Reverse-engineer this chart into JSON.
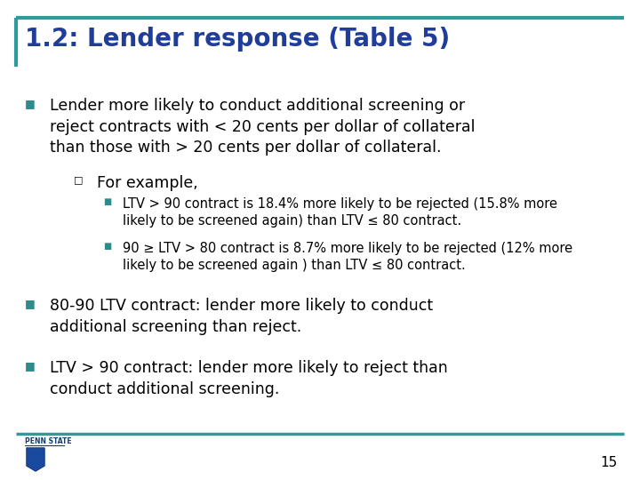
{
  "title": "1.2: Lender response (Table 5)",
  "title_color": "#1f3d99",
  "title_fontsize": 20,
  "bg_color": "#ffffff",
  "border_color_top": "#2e9b9b",
  "border_color_bottom": "#2e9b9b",
  "page_number": "15",
  "bullet_color": "#2e8b8b",
  "bullet1": "Lender more likely to conduct additional screening or\nreject contracts with < 20 cents per dollar of collateral\nthan those with > 20 cents per dollar of collateral.",
  "sub_bullet_label": "For example,",
  "sub_bullet1": "LTV > 90 contract is 18.4% more likely to be rejected (15.8% more\nlikely to be screened again) than LTV ≤ 80 contract.",
  "sub_bullet2": "90 ≥ LTV > 80 contract is 8.7% more likely to be rejected (12% more\nlikely to be screened again ) than LTV ≤ 80 contract.",
  "bullet2": "80-90 LTV contract: lender more likely to conduct\nadditional screening than reject.",
  "bullet3": "LTV > 90 contract: lender more likely to reject than\nconduct additional screening.",
  "text_color": "#000000",
  "main_fontsize": 12.5,
  "sub_fontsize": 10.5,
  "title_left_bar_color": "#2e9b9b"
}
